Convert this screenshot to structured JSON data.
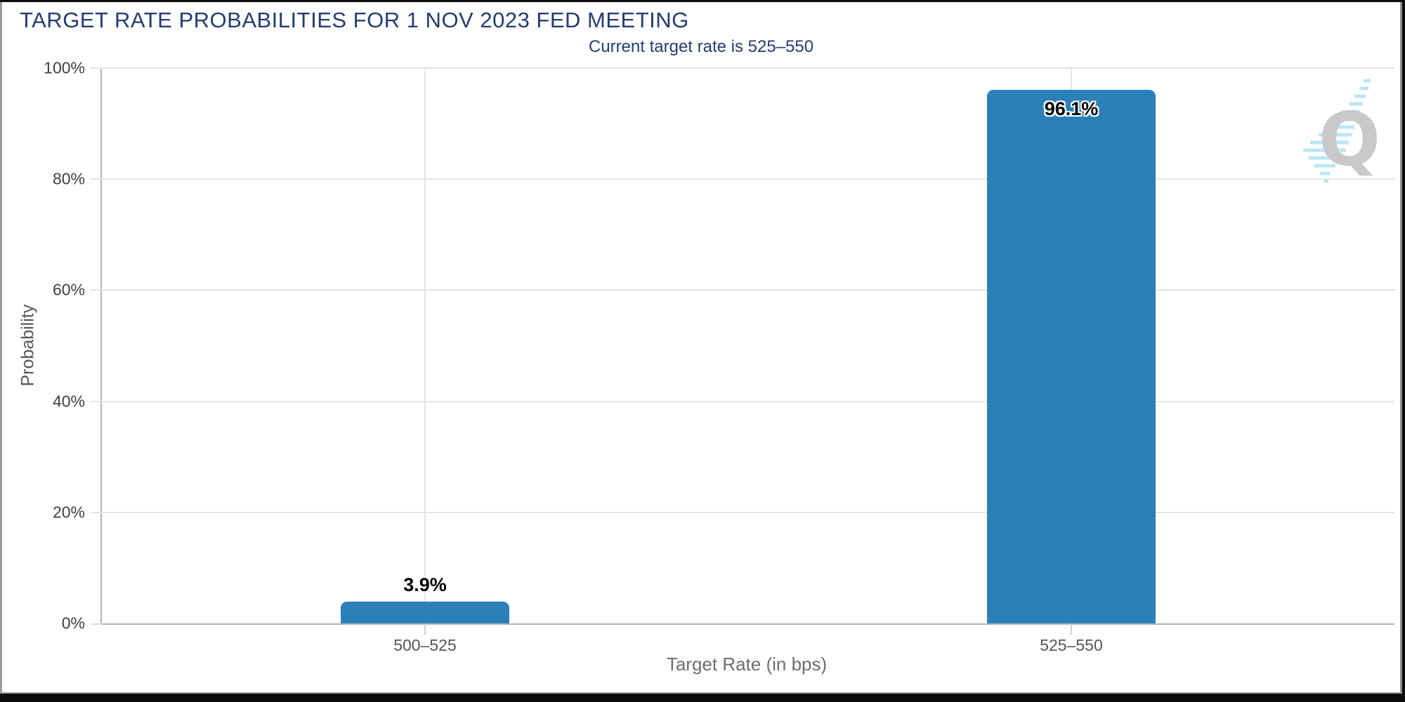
{
  "chart_data": {
    "type": "bar",
    "title": "TARGET RATE PROBABILITIES FOR 1 NOV 2023 FED MEETING",
    "subtitle": "Current target rate is 525–550",
    "categories": [
      "500–525",
      "525–550"
    ],
    "values": [
      3.9,
      96.1
    ],
    "value_labels": [
      "3.9%",
      "96.1%"
    ],
    "xlabel": "Target Rate (in bps)",
    "ylabel": "Probability",
    "ylim": [
      0,
      100
    ],
    "yticks": [
      "0%",
      "20%",
      "40%",
      "60%",
      "80%",
      "100%"
    ],
    "grid": true,
    "legend_position": "none",
    "bar_color": "#2c80b9",
    "title_color": "#263c6f"
  },
  "watermark": {
    "icon": "q-swoosh-logo-icon",
    "letter": "Q"
  }
}
